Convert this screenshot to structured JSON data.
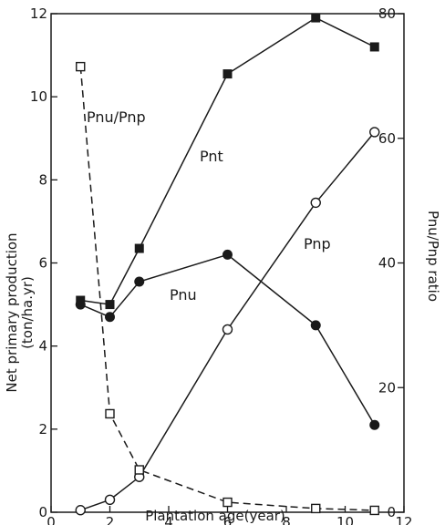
{
  "chart_data": {
    "type": "line",
    "x_axis": {
      "label": "Plantation age(year)",
      "range": [
        0,
        12
      ],
      "ticks": [
        0,
        2,
        4,
        6,
        8,
        10,
        12
      ]
    },
    "y_axis_left": {
      "label_line1": "Net primary production",
      "label_line2": "(ton/ha.yr)",
      "range": [
        0,
        12
      ],
      "ticks": [
        0,
        2,
        4,
        6,
        8,
        10,
        12
      ]
    },
    "y_axis_right": {
      "label": "Pnu/Pnp ratio",
      "range": [
        0,
        80
      ],
      "ticks": [
        0,
        20,
        40,
        60,
        80
      ]
    },
    "series": [
      {
        "name": "Pnt",
        "axis": "left",
        "marker": "filled-square",
        "line": "solid",
        "points": [
          [
            1,
            5.1
          ],
          [
            2,
            5.0
          ],
          [
            3,
            6.35
          ],
          [
            6,
            10.55
          ],
          [
            9,
            11.9
          ],
          [
            11,
            11.2
          ]
        ]
      },
      {
        "name": "Pnu",
        "axis": "left",
        "marker": "filled-circle",
        "line": "solid",
        "points": [
          [
            1,
            5.0
          ],
          [
            2,
            4.7
          ],
          [
            3,
            5.55
          ],
          [
            6,
            6.2
          ],
          [
            9,
            4.5
          ],
          [
            11,
            2.1
          ]
        ]
      },
      {
        "name": "Pnp",
        "axis": "left",
        "marker": "open-circle",
        "line": "solid",
        "points": [
          [
            1,
            0.05
          ],
          [
            2,
            0.3
          ],
          [
            3,
            0.85
          ],
          [
            6,
            4.4
          ],
          [
            9,
            7.45
          ],
          [
            11,
            9.15
          ]
        ]
      },
      {
        "name": "Pnu/Pnp",
        "axis": "right",
        "marker": "open-square",
        "line": "dashed",
        "points": [
          [
            1,
            71.5
          ],
          [
            2,
            15.8
          ],
          [
            3,
            6.8
          ],
          [
            6,
            1.6
          ],
          [
            9,
            0.6
          ],
          [
            11,
            0.3
          ]
        ]
      }
    ],
    "grid": false,
    "legend": "inline labels"
  }
}
